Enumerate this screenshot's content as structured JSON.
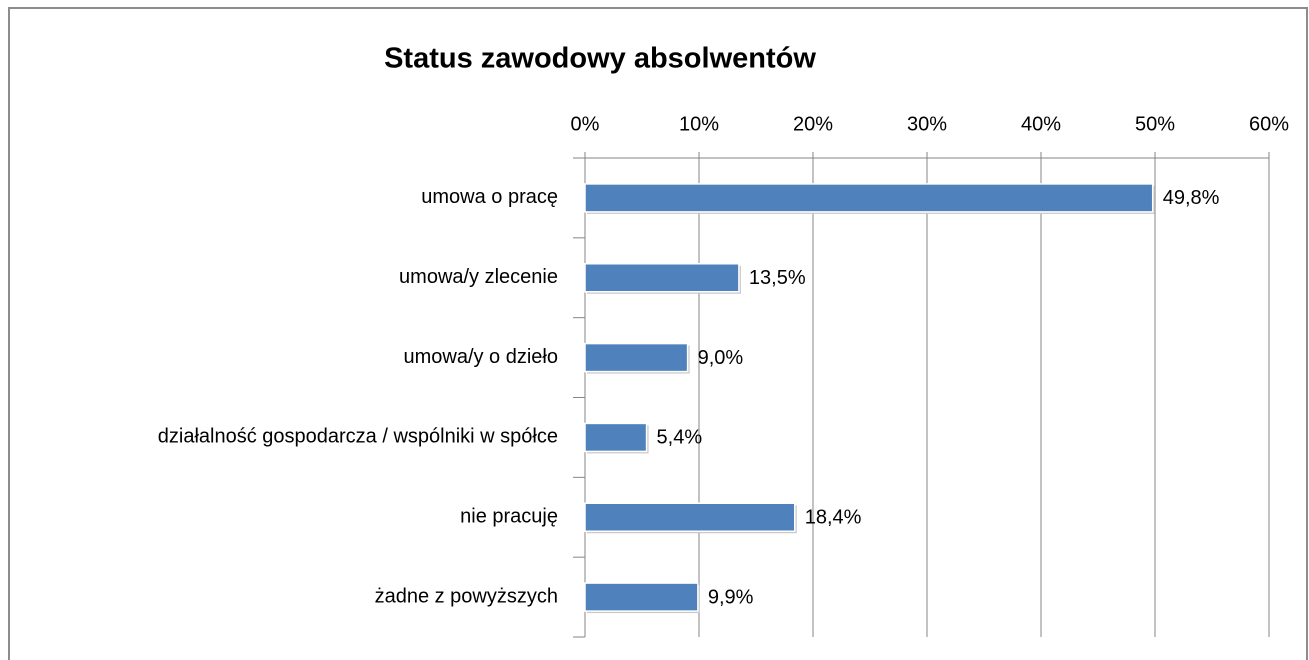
{
  "chart_data": {
    "type": "bar",
    "orientation": "horizontal",
    "title": "Status zawodowy absolwentów",
    "categories": [
      "umowa o pracę",
      "umowa/y zlecenie",
      "umowa/y o dzieło",
      "działalność gospodarcza / wspólniki w spółce",
      "nie pracuję",
      "żadne z powyższych"
    ],
    "values": [
      49.8,
      13.5,
      9.0,
      5.4,
      18.4,
      9.9
    ],
    "value_labels": [
      "49,8%",
      "13,5%",
      "9,0%",
      "5,4%",
      "18,4%",
      "9,9%"
    ],
    "color": "#4f81bd",
    "xlim": [
      0,
      60
    ],
    "xticks": [
      {
        "value": 0,
        "label": "0%"
      },
      {
        "value": 10,
        "label": "10%"
      },
      {
        "value": 20,
        "label": "20%"
      },
      {
        "value": 30,
        "label": "30%"
      },
      {
        "value": 40,
        "label": "40%"
      },
      {
        "value": 50,
        "label": "50%"
      },
      {
        "value": 60,
        "label": "60%"
      }
    ],
    "grid": true
  }
}
